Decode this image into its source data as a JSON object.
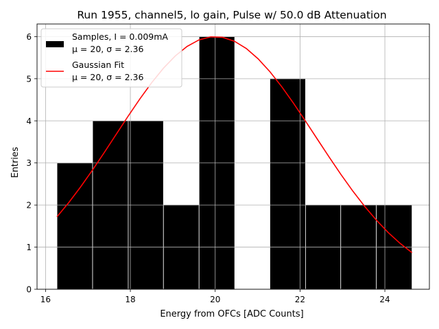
{
  "chart_data": {
    "type": "bar",
    "title": "Run 1955, channel5, lo gain, Pulse w/ 50.0 dB Attenuation",
    "xlabel": "Energy from OFCs [ADC Counts]",
    "ylabel": "Entries",
    "xlim": [
      15.8,
      25.05
    ],
    "ylim": [
      0,
      6.3
    ],
    "xticks": [
      16,
      18,
      20,
      22,
      24
    ],
    "yticks": [
      0,
      1,
      2,
      3,
      4,
      5,
      6
    ],
    "grid": true,
    "legend_position": "top-left",
    "bin_edges": [
      16.27,
      17.11,
      17.95,
      18.78,
      19.62,
      20.46,
      21.29,
      22.13,
      22.96,
      23.8,
      24.64
    ],
    "values": [
      3,
      4,
      4,
      2,
      6,
      0,
      5,
      2,
      2,
      2
    ],
    "series": [
      {
        "name": "Samples, I = 0.009mA",
        "stats": "μ = 20, σ = 2.36",
        "kind": "histogram",
        "color": "#000000"
      },
      {
        "name": "Gaussian Fit",
        "stats": "μ = 20, σ = 2.36",
        "kind": "line",
        "color": "#ff0000",
        "amplitude": 6.0,
        "mu": 20.0,
        "sigma": 2.36,
        "x_range": [
          16.27,
          24.64
        ]
      }
    ]
  }
}
